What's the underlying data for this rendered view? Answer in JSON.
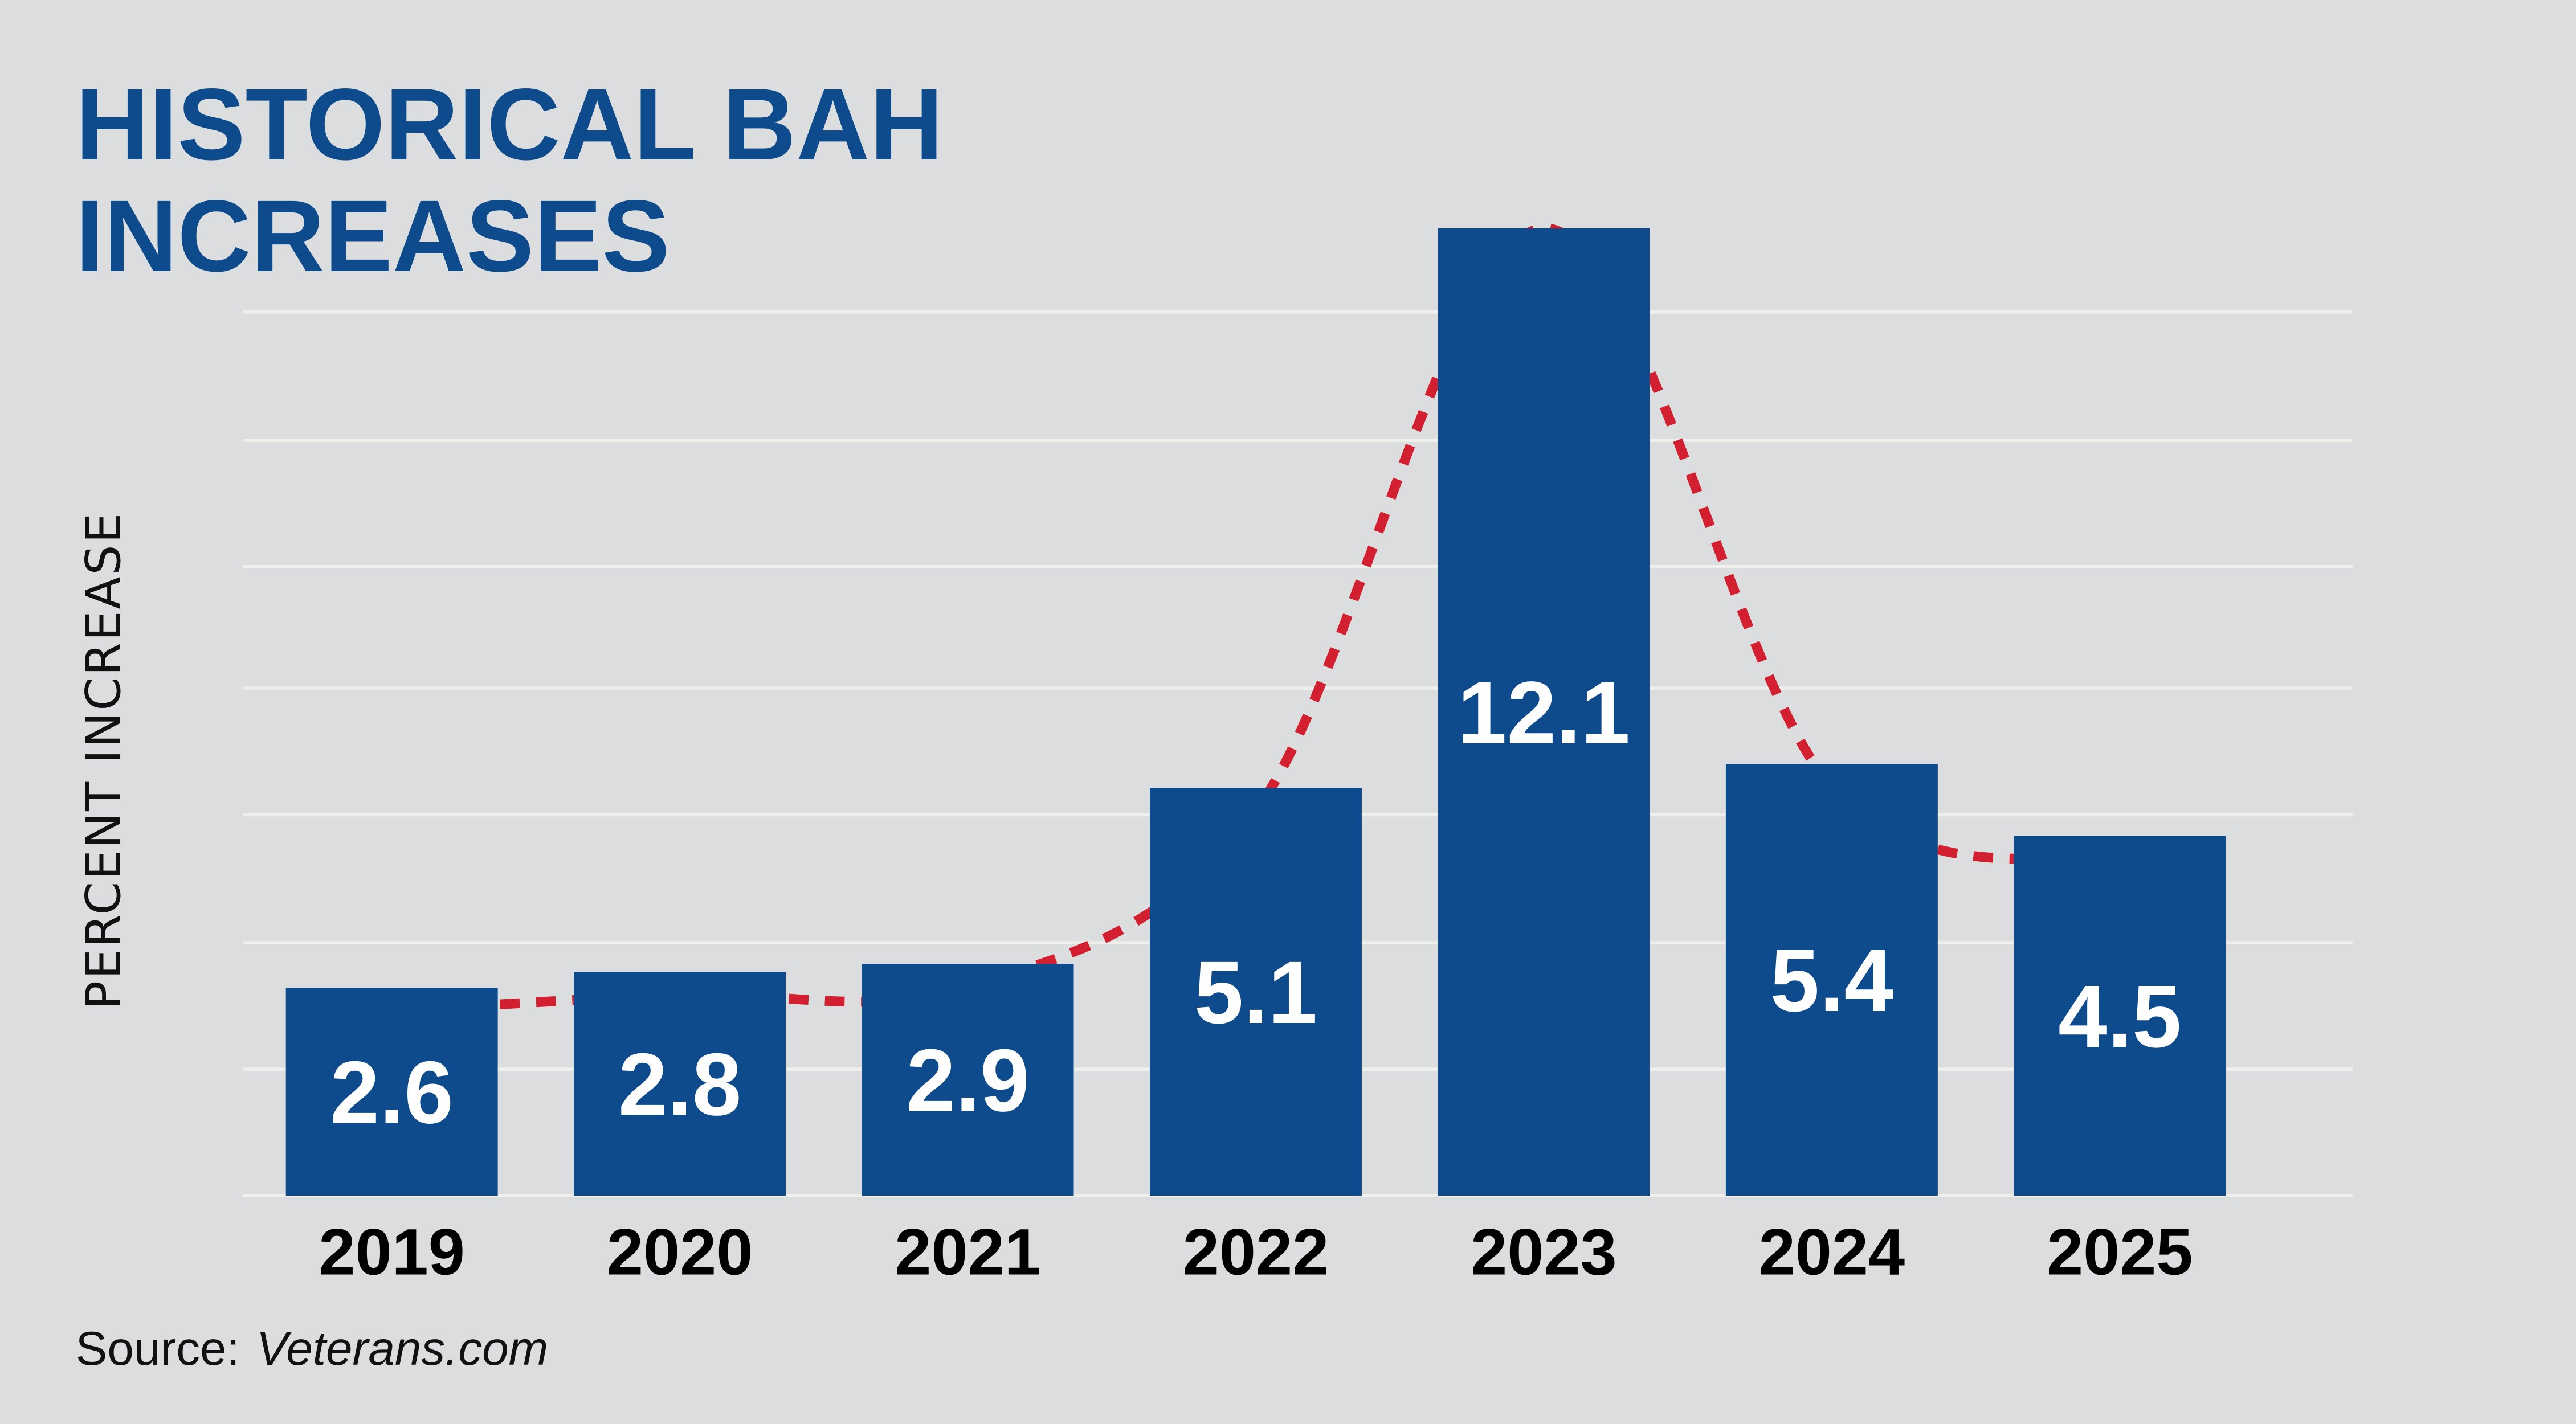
{
  "chart_data": {
    "type": "bar",
    "title_lines": [
      "HISTORICAL BAH",
      "INCREASES"
    ],
    "ylabel": "PERCENT INCREASE",
    "xlabel": "",
    "categories": [
      "2019",
      "2020",
      "2021",
      "2022",
      "2023",
      "2024",
      "2025"
    ],
    "values": [
      2.6,
      2.8,
      2.9,
      5.1,
      12.1,
      5.4,
      4.5
    ],
    "value_labels": [
      "2.6",
      "2.8",
      "2.9",
      "5.1",
      "12.1",
      "5.4",
      "4.5"
    ],
    "ylim": [
      0,
      12.1
    ],
    "grid": true,
    "trend_line": "dashed curve",
    "source_label": "Source:",
    "source_name": "Veterans.com",
    "colors": {
      "background": "#dcdddf",
      "bar": "#0d4b8c",
      "title": "#0d4b8c",
      "trend": "#d32030",
      "grid": "#eeeeea"
    }
  }
}
